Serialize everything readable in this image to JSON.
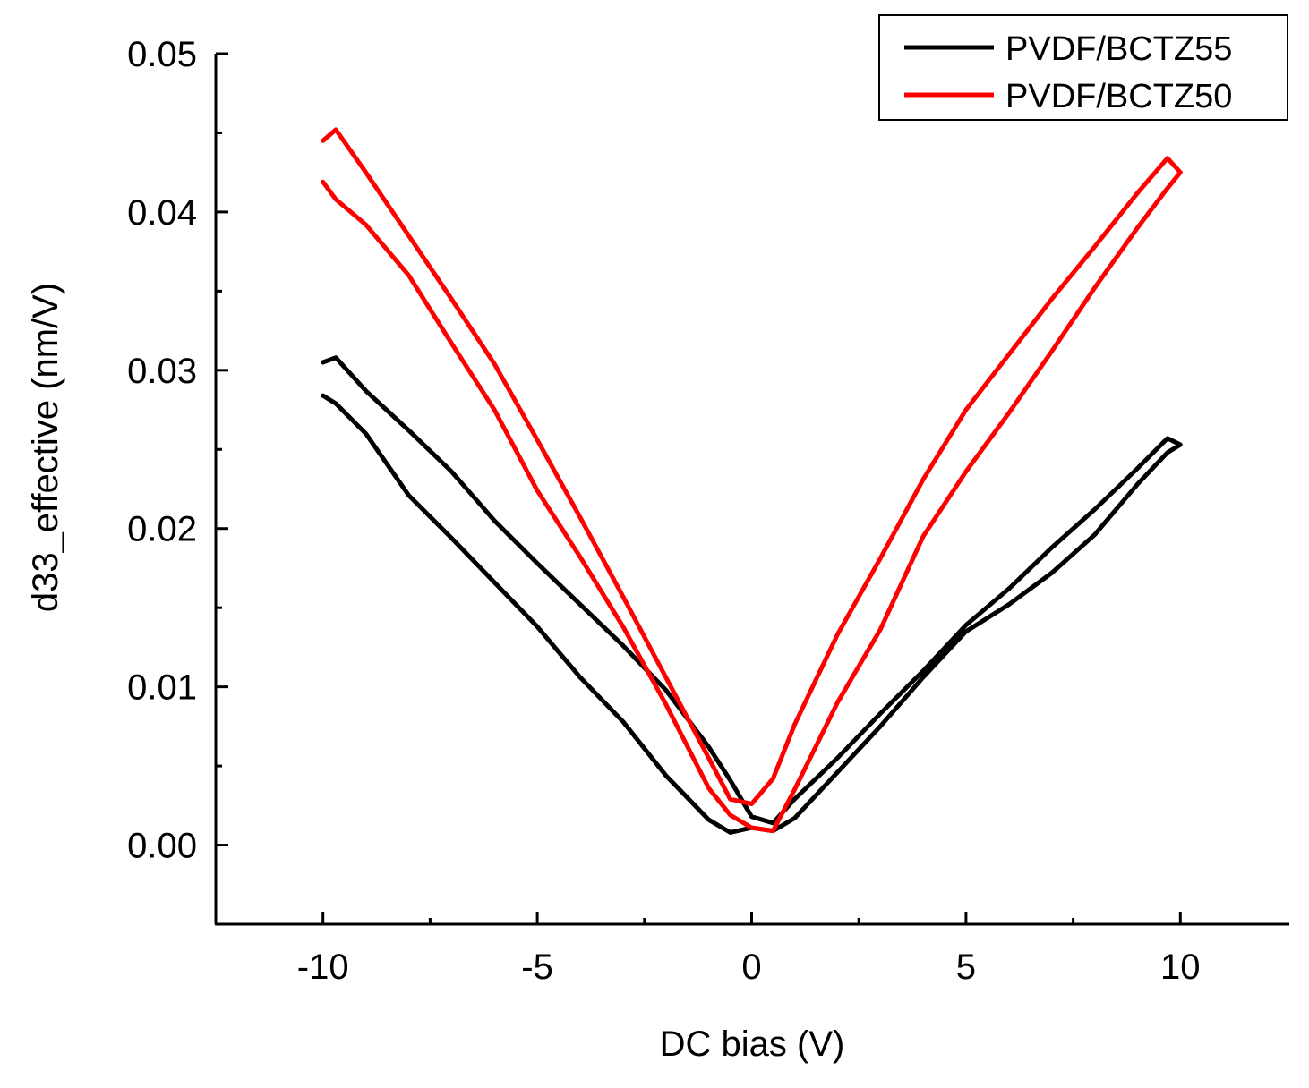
{
  "chart_data": {
    "type": "line",
    "title": "",
    "xlabel": "DC bias (V)",
    "ylabel": "d33_effective (nm/V)",
    "xlim": [
      -12.5,
      12.5
    ],
    "ylim": [
      -0.005,
      0.05
    ],
    "x_ticks": [
      {
        "value": -10,
        "label": "-10"
      },
      {
        "value": -5,
        "label": "-5"
      },
      {
        "value": 0,
        "label": "0"
      },
      {
        "value": 5,
        "label": "5"
      },
      {
        "value": 10,
        "label": "10"
      }
    ],
    "x_minor_ticks": [
      -7.5,
      -2.5,
      2.5,
      7.5
    ],
    "y_ticks": [
      {
        "value": 0.0,
        "label": "0.00"
      },
      {
        "value": 0.01,
        "label": "0.01"
      },
      {
        "value": 0.02,
        "label": "0.02"
      },
      {
        "value": 0.03,
        "label": "0.03"
      },
      {
        "value": 0.04,
        "label": "0.04"
      },
      {
        "value": 0.05,
        "label": "0.05"
      }
    ],
    "y_minor_ticks": [
      0.005,
      0.015,
      0.025,
      0.035,
      0.045
    ],
    "grid": false,
    "legend_position": "top-right",
    "series": [
      {
        "name": "PVDF/BCTZ55",
        "color": "#000000",
        "x": [
          -10,
          -9.7,
          -9,
          -8,
          -7,
          -6,
          -5,
          -4,
          -3,
          -2,
          -1,
          -0.5,
          0,
          0.5,
          1,
          2,
          3,
          4,
          5,
          6,
          7,
          8,
          9,
          9.7,
          10,
          9.7,
          9,
          8,
          7,
          6,
          5,
          4,
          3,
          2,
          1,
          0.5,
          0,
          -0.5,
          -1,
          -2,
          -3,
          -4,
          -5,
          -6,
          -7,
          -8,
          -9,
          -9.7,
          -10
        ],
        "y": [
          0.0305,
          0.0308,
          0.0287,
          0.0262,
          0.0236,
          0.0205,
          0.0178,
          0.0152,
          0.0126,
          0.0098,
          0.0062,
          0.0041,
          0.0018,
          0.0014,
          0.0029,
          0.0055,
          0.0083,
          0.011,
          0.0139,
          0.0162,
          0.0188,
          0.0212,
          0.0238,
          0.0257,
          0.0253,
          0.0248,
          0.0228,
          0.0196,
          0.0172,
          0.0152,
          0.0135,
          0.0106,
          0.0075,
          0.0046,
          0.0017,
          0.0009,
          0.0011,
          0.0008,
          0.0016,
          0.0044,
          0.0078,
          0.0106,
          0.0138,
          0.0166,
          0.0194,
          0.0221,
          0.026,
          0.0279,
          0.0284
        ]
      },
      {
        "name": "PVDF/BCTZ50",
        "color": "#ff0000",
        "x": [
          -10,
          -9.7,
          -9,
          -8,
          -7,
          -6,
          -5,
          -4,
          -3,
          -2,
          -1,
          -0.5,
          0,
          0.5,
          1,
          2,
          3,
          4,
          5,
          6,
          7,
          8,
          9,
          9.7,
          10,
          9.7,
          9,
          8,
          7,
          6,
          5,
          4,
          3,
          2,
          1,
          0.5,
          0,
          -0.5,
          -1,
          -2,
          -3,
          -4,
          -5,
          -6,
          -7,
          -8,
          -9,
          -9.7,
          -10
        ],
        "y": [
          0.0445,
          0.0452,
          0.0425,
          0.0385,
          0.0345,
          0.0304,
          0.0256,
          0.0207,
          0.0157,
          0.0106,
          0.0055,
          0.0029,
          0.0026,
          0.0042,
          0.0076,
          0.0133,
          0.0181,
          0.0231,
          0.0275,
          0.031,
          0.0345,
          0.0378,
          0.0412,
          0.0434,
          0.0425,
          0.0415,
          0.039,
          0.0352,
          0.0312,
          0.0273,
          0.0236,
          0.0195,
          0.0136,
          0.009,
          0.0035,
          0.0009,
          0.0011,
          0.0019,
          0.0036,
          0.0089,
          0.0138,
          0.0182,
          0.0224,
          0.0275,
          0.0317,
          0.036,
          0.0392,
          0.0408,
          0.0419
        ]
      }
    ]
  }
}
